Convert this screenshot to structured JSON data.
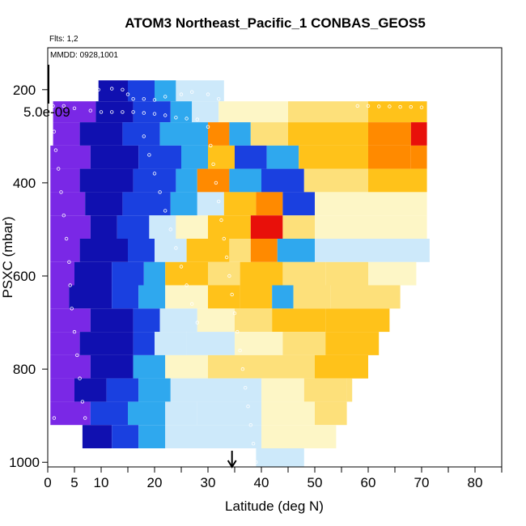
{
  "chart_data": {
    "type": "heatmap",
    "title": "ATOM3 Northeast_Pacific_1 CONBAS_GEOS5",
    "flights_text": "Flts: 1,2",
    "mmdd_text": "MMDD: 0928,1001",
    "legend_value": "5.0e-09",
    "xlabel": "Latitude (deg N)",
    "ylabel": "PSXC (mbar)",
    "xlim": [
      0,
      85
    ],
    "ylim": [
      1010,
      110
    ],
    "x_ticks": [
      "0",
      "5",
      "10",
      "20",
      "30",
      "40",
      "50",
      "60",
      "70",
      "80"
    ],
    "x_tick_values": [
      0,
      5,
      10,
      20,
      30,
      40,
      50,
      60,
      70,
      80
    ],
    "x_minor_ticks": [
      15,
      25,
      35,
      45,
      55,
      65,
      75,
      85
    ],
    "y_ticks": [
      "200",
      "400",
      "600",
      "800",
      "1000"
    ],
    "y_tick_values": [
      200,
      400,
      600,
      800,
      1000
    ],
    "arrow_latitude": 34.5,
    "colors": {
      "purple": "#7a28e6",
      "deep_blue": "#1010b0",
      "blue": "#1a40e0",
      "sky": "#2fa8ee",
      "pale": "#cde9fa",
      "cream": "#fdf6c6",
      "yellow": "#fde07a",
      "gold": "#ffc21a",
      "orange": "#ff8a00",
      "red": "#e8100a"
    },
    "bands": [
      {
        "p": [
          180,
          225
        ],
        "segments": [
          [
            9.5,
            15,
            "deep_blue"
          ],
          [
            15,
            20,
            "blue"
          ],
          [
            20,
            24,
            "sky"
          ],
          [
            24,
            33,
            "pale"
          ]
        ]
      },
      {
        "p": [
          225,
          270
        ],
        "segments": [
          [
            1,
            9,
            "purple"
          ],
          [
            9,
            16,
            "deep_blue"
          ],
          [
            16,
            23,
            "blue"
          ],
          [
            23,
            27,
            "sky"
          ],
          [
            27,
            32,
            "pale"
          ],
          [
            32,
            45,
            "cream"
          ],
          [
            45,
            60,
            "yellow"
          ],
          [
            60,
            71,
            "gold"
          ]
        ]
      },
      {
        "p": [
          270,
          320
        ],
        "segments": [
          [
            1,
            6,
            "purple"
          ],
          [
            6,
            14,
            "deep_blue"
          ],
          [
            14,
            21,
            "blue"
          ],
          [
            21,
            30,
            "sky"
          ],
          [
            30,
            34,
            "orange"
          ],
          [
            34,
            38,
            "sky"
          ],
          [
            38,
            45,
            "yellow"
          ],
          [
            45,
            60,
            "gold"
          ],
          [
            60,
            68,
            "orange"
          ],
          [
            68,
            71,
            "red"
          ]
        ]
      },
      {
        "p": [
          320,
          370
        ],
        "segments": [
          [
            0.5,
            8,
            "purple"
          ],
          [
            8,
            17,
            "deep_blue"
          ],
          [
            17,
            25,
            "blue"
          ],
          [
            25,
            30,
            "sky"
          ],
          [
            30,
            35,
            "gold"
          ],
          [
            35,
            41,
            "blue"
          ],
          [
            41,
            47,
            "sky"
          ],
          [
            47,
            60,
            "gold"
          ],
          [
            60,
            68,
            "orange"
          ],
          [
            68,
            71,
            "orange"
          ]
        ]
      },
      {
        "p": [
          370,
          420
        ],
        "segments": [
          [
            0.5,
            6,
            "purple"
          ],
          [
            6,
            16,
            "deep_blue"
          ],
          [
            16,
            24,
            "blue"
          ],
          [
            24,
            28,
            "sky"
          ],
          [
            28,
            34,
            "orange"
          ],
          [
            34,
            40,
            "sky"
          ],
          [
            40,
            48,
            "blue"
          ],
          [
            48,
            60,
            "yellow"
          ],
          [
            60,
            71,
            "gold"
          ]
        ]
      },
      {
        "p": [
          420,
          470
        ],
        "segments": [
          [
            0.5,
            7,
            "purple"
          ],
          [
            7,
            14,
            "deep_blue"
          ],
          [
            14,
            23,
            "blue"
          ],
          [
            23,
            28,
            "sky"
          ],
          [
            28,
            33,
            "pale"
          ],
          [
            33,
            39,
            "gold"
          ],
          [
            39,
            44,
            "orange"
          ],
          [
            44,
            50,
            "blue"
          ],
          [
            50,
            60,
            "cream"
          ],
          [
            60,
            71,
            "cream"
          ]
        ]
      },
      {
        "p": [
          470,
          520
        ],
        "segments": [
          [
            0.5,
            8,
            "purple"
          ],
          [
            8,
            13,
            "deep_blue"
          ],
          [
            13,
            19,
            "blue"
          ],
          [
            19,
            24,
            "pale"
          ],
          [
            24,
            30,
            "cream"
          ],
          [
            30,
            38,
            "gold"
          ],
          [
            38,
            44,
            "red"
          ],
          [
            44,
            50,
            "yellow"
          ],
          [
            50,
            60,
            "cream"
          ],
          [
            60,
            71,
            "cream"
          ]
        ]
      },
      {
        "p": [
          520,
          570
        ],
        "segments": [
          [
            0.5,
            6,
            "purple"
          ],
          [
            6,
            15,
            "deep_blue"
          ],
          [
            15,
            20,
            "blue"
          ],
          [
            20,
            26,
            "pale"
          ],
          [
            26,
            34,
            "gold"
          ],
          [
            34,
            38,
            "yellow"
          ],
          [
            38,
            43,
            "orange"
          ],
          [
            43,
            50,
            "sky"
          ],
          [
            50,
            60,
            "pale"
          ],
          [
            60,
            71.5,
            "pale"
          ]
        ]
      },
      {
        "p": [
          570,
          620
        ],
        "segments": [
          [
            0.5,
            5,
            "purple"
          ],
          [
            5,
            12,
            "deep_blue"
          ],
          [
            12,
            18,
            "blue"
          ],
          [
            18,
            22,
            "sky"
          ],
          [
            22,
            30,
            "gold"
          ],
          [
            30,
            36,
            "yellow"
          ],
          [
            36,
            44,
            "gold"
          ],
          [
            44,
            52,
            "yellow"
          ],
          [
            52,
            60,
            "yellow"
          ],
          [
            60,
            69,
            "cream"
          ]
        ]
      },
      {
        "p": [
          620,
          670
        ],
        "segments": [
          [
            0.5,
            4,
            "purple"
          ],
          [
            4,
            12,
            "deep_blue"
          ],
          [
            12,
            17,
            "blue"
          ],
          [
            17,
            22,
            "sky"
          ],
          [
            22,
            30,
            "cream"
          ],
          [
            30,
            36,
            "gold"
          ],
          [
            36,
            42,
            "gold"
          ],
          [
            42,
            46,
            "sky"
          ],
          [
            46,
            53,
            "yellow"
          ],
          [
            53,
            66,
            "yellow"
          ]
        ]
      },
      {
        "p": [
          670,
          720
        ],
        "segments": [
          [
            0.5,
            8,
            "purple"
          ],
          [
            8,
            16,
            "deep_blue"
          ],
          [
            16,
            21,
            "blue"
          ],
          [
            21,
            28,
            "pale"
          ],
          [
            28,
            35,
            "cream"
          ],
          [
            35,
            42,
            "yellow"
          ],
          [
            42,
            52,
            "gold"
          ],
          [
            52,
            64,
            "gold"
          ]
        ]
      },
      {
        "p": [
          720,
          770
        ],
        "segments": [
          [
            0.5,
            6,
            "purple"
          ],
          [
            6,
            16,
            "deep_blue"
          ],
          [
            16,
            20,
            "blue"
          ],
          [
            20,
            26,
            "pale"
          ],
          [
            26,
            35,
            "pale"
          ],
          [
            35,
            44,
            "cream"
          ],
          [
            44,
            52,
            "yellow"
          ],
          [
            52,
            62,
            "gold"
          ]
        ]
      },
      {
        "p": [
          770,
          820
        ],
        "segments": [
          [
            0.5,
            8,
            "purple"
          ],
          [
            8,
            16,
            "deep_blue"
          ],
          [
            16,
            22,
            "sky"
          ],
          [
            22,
            30,
            "cream"
          ],
          [
            30,
            40,
            "yellow"
          ],
          [
            40,
            50,
            "yellow"
          ],
          [
            50,
            60,
            "gold"
          ]
        ]
      },
      {
        "p": [
          820,
          870
        ],
        "segments": [
          [
            0.5,
            5,
            "purple"
          ],
          [
            5,
            11,
            "deep_blue"
          ],
          [
            11,
            17,
            "blue"
          ],
          [
            17,
            23,
            "sky"
          ],
          [
            23,
            30,
            "pale"
          ],
          [
            30,
            40,
            "pale"
          ],
          [
            40,
            48,
            "cream"
          ],
          [
            48,
            56,
            "yellow"
          ],
          [
            56,
            57,
            "yellow"
          ]
        ]
      },
      {
        "p": [
          870,
          920
        ],
        "segments": [
          [
            0.5,
            8,
            "purple"
          ],
          [
            8,
            15,
            "blue"
          ],
          [
            15,
            22,
            "sky"
          ],
          [
            22,
            28,
            "pale"
          ],
          [
            28,
            40,
            "pale"
          ],
          [
            40,
            50,
            "cream"
          ],
          [
            50,
            56,
            "yellow"
          ]
        ]
      },
      {
        "p": [
          920,
          970
        ],
        "segments": [
          [
            6.5,
            12,
            "deep_blue"
          ],
          [
            12,
            17,
            "blue"
          ],
          [
            17,
            22,
            "sky"
          ],
          [
            22,
            30,
            "pale"
          ],
          [
            30,
            40,
            "pale"
          ],
          [
            40,
            50,
            "cream"
          ],
          [
            50,
            54,
            "cream"
          ]
        ]
      },
      {
        "p": [
          970,
          1010
        ],
        "segments": [
          [
            39,
            48,
            "pale"
          ]
        ]
      }
    ],
    "flight_tracks": [
      {
        "points": [
          [
            9.5,
            200
          ],
          [
            12,
            198
          ],
          [
            14,
            200
          ],
          [
            15,
            210
          ],
          [
            16,
            220
          ],
          [
            18,
            220
          ],
          [
            20,
            222
          ],
          [
            22,
            215
          ],
          [
            25,
            210
          ],
          [
            27,
            205
          ],
          [
            30,
            210
          ],
          [
            32,
            220
          ]
        ]
      },
      {
        "points": [
          [
            1,
            235
          ],
          [
            3,
            235
          ],
          [
            5,
            240
          ],
          [
            8,
            245
          ],
          [
            10,
            248
          ],
          [
            12,
            248
          ],
          [
            14,
            248
          ],
          [
            16,
            248
          ],
          [
            18,
            250
          ],
          [
            20,
            252
          ],
          [
            22,
            255
          ],
          [
            24,
            260
          ],
          [
            26,
            262
          ],
          [
            28,
            264
          ]
        ]
      },
      {
        "points": [
          [
            1.2,
            290
          ],
          [
            1.5,
            330
          ],
          [
            2,
            370
          ],
          [
            2.5,
            420
          ],
          [
            3,
            470
          ],
          [
            3.5,
            520
          ],
          [
            4,
            570
          ],
          [
            4.2,
            620
          ],
          [
            4.5,
            670
          ],
          [
            5,
            720
          ],
          [
            5.5,
            770
          ],
          [
            6,
            820
          ],
          [
            6.5,
            870
          ],
          [
            7,
            905
          ],
          [
            1.2,
            905
          ]
        ]
      },
      {
        "points": [
          [
            30,
            280
          ],
          [
            30.5,
            320
          ],
          [
            31,
            360
          ],
          [
            31.5,
            400
          ],
          [
            32,
            440
          ],
          [
            32.5,
            480
          ],
          [
            33,
            520
          ],
          [
            33.5,
            560
          ],
          [
            34,
            600
          ],
          [
            34.5,
            640
          ],
          [
            35,
            680
          ],
          [
            35.5,
            720
          ],
          [
            36,
            760
          ],
          [
            36.5,
            800
          ],
          [
            37,
            840
          ],
          [
            37.5,
            880
          ],
          [
            38,
            920
          ],
          [
            38.5,
            960
          ],
          [
            39,
            1000
          ]
        ]
      },
      {
        "points": [
          [
            58,
            235
          ],
          [
            60,
            235
          ],
          [
            62,
            236
          ],
          [
            64,
            236
          ],
          [
            66,
            237
          ],
          [
            68,
            237
          ],
          [
            70,
            238
          ]
        ]
      },
      {
        "points": [
          [
            18,
            300
          ],
          [
            19,
            340
          ],
          [
            20,
            380
          ],
          [
            21,
            420
          ],
          [
            22,
            460
          ],
          [
            23,
            500
          ],
          [
            24,
            540
          ],
          [
            25,
            580
          ],
          [
            26,
            620
          ],
          [
            27,
            660
          ],
          [
            28,
            700
          ]
        ]
      }
    ]
  }
}
